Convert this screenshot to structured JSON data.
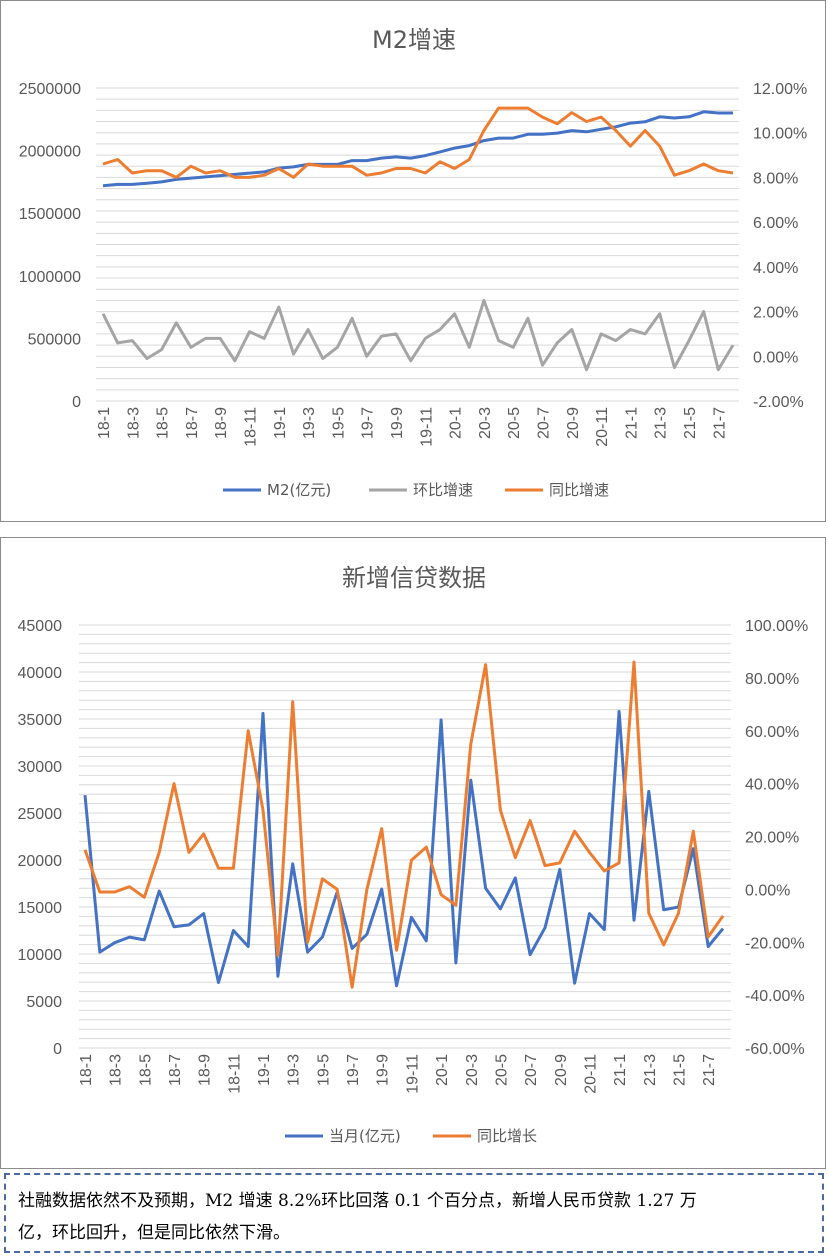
{
  "charts": [
    {
      "title": "M2增速",
      "categories": [
        "18-1",
        "18-3",
        "18-5",
        "18-7",
        "18-9",
        "18-11",
        "19-1",
        "19-3",
        "19-5",
        "19-7",
        "19-9",
        "19-11",
        "20-1",
        "20-3",
        "20-5",
        "20-7",
        "20-9",
        "20-11",
        "21-1",
        "21-3",
        "21-5",
        "21-7"
      ],
      "left_ticks": [
        "0",
        "500000",
        "1000000",
        "1500000",
        "2000000",
        "2500000"
      ],
      "right_ticks": [
        "-2.00%",
        "0.00%",
        "2.00%",
        "4.00%",
        "6.00%",
        "8.00%",
        "10.00%",
        "12.00%"
      ],
      "legend": [
        "M2(亿元)",
        "环比增速",
        "同比增速"
      ]
    },
    {
      "title": "新增信贷数据",
      "categories": [
        "18-1",
        "18-3",
        "18-5",
        "18-7",
        "18-9",
        "18-11",
        "19-1",
        "19-3",
        "19-5",
        "19-7",
        "19-9",
        "19-11",
        "20-1",
        "20-3",
        "20-5",
        "20-7",
        "20-9",
        "20-11",
        "21-1",
        "21-3",
        "21-5",
        "21-7"
      ],
      "left_ticks": [
        "0",
        "5000",
        "10000",
        "15000",
        "20000",
        "25000",
        "30000",
        "35000",
        "40000",
        "45000"
      ],
      "right_ticks": [
        "-60.00%",
        "-40.00%",
        "-20.00%",
        "0.00%",
        "20.00%",
        "40.00%",
        "60.00%",
        "80.00%",
        "100.00%"
      ],
      "legend": [
        "当月(亿元)",
        "同比增长"
      ]
    }
  ],
  "chart_data": [
    {
      "type": "line",
      "title": "M2增速",
      "x": [
        "18-1",
        "18-2",
        "18-3",
        "18-4",
        "18-5",
        "18-6",
        "18-7",
        "18-8",
        "18-9",
        "18-10",
        "18-11",
        "18-12",
        "19-1",
        "19-2",
        "19-3",
        "19-4",
        "19-5",
        "19-6",
        "19-7",
        "19-8",
        "19-9",
        "19-10",
        "19-11",
        "19-12",
        "20-1",
        "20-2",
        "20-3",
        "20-4",
        "20-5",
        "20-6",
        "20-7",
        "20-8",
        "20-9",
        "20-10",
        "20-11",
        "20-12",
        "21-1",
        "21-2",
        "21-3",
        "21-4",
        "21-5",
        "21-6",
        "21-7",
        "21-8"
      ],
      "left_ylim": [
        0,
        2500000
      ],
      "right_ylim": [
        -0.02,
        0.12
      ],
      "grid": true,
      "legend_position": "bottom",
      "series": [
        {
          "name": "M2(亿元)",
          "axis": "left",
          "color": "#4472c4",
          "values": [
            1720000,
            1730000,
            1730000,
            1740000,
            1750000,
            1770000,
            1780000,
            1790000,
            1800000,
            1810000,
            1820000,
            1830000,
            1860000,
            1870000,
            1890000,
            1890000,
            1890000,
            1920000,
            1920000,
            1940000,
            1950000,
            1940000,
            1960000,
            1990000,
            2020000,
            2040000,
            2080000,
            2100000,
            2100000,
            2130000,
            2130000,
            2140000,
            2160000,
            2150000,
            2170000,
            2190000,
            2220000,
            2230000,
            2270000,
            2260000,
            2270000,
            2310000,
            2300000,
            2300000
          ]
        },
        {
          "name": "环比增速",
          "axis": "right",
          "color": "#a5a5a5",
          "values": [
            0.019,
            0.006,
            0.007,
            -0.001,
            0.003,
            0.015,
            0.004,
            0.008,
            0.008,
            -0.002,
            0.011,
            0.008,
            0.022,
            0.001,
            0.012,
            -0.001,
            0.004,
            0.017,
            0.0,
            0.009,
            0.01,
            -0.002,
            0.008,
            0.012,
            0.019,
            0.004,
            0.025,
            0.007,
            0.004,
            0.017,
            -0.004,
            0.006,
            0.012,
            -0.006,
            0.01,
            0.007,
            0.012,
            0.01,
            0.019,
            -0.005,
            0.007,
            0.02,
            -0.006,
            0.005
          ]
        },
        {
          "name": "同比增速",
          "axis": "right",
          "color": "#ed7d31",
          "values": [
            0.086,
            0.088,
            0.082,
            0.083,
            0.083,
            0.08,
            0.085,
            0.082,
            0.083,
            0.08,
            0.08,
            0.081,
            0.084,
            0.08,
            0.086,
            0.085,
            0.085,
            0.085,
            0.081,
            0.082,
            0.084,
            0.084,
            0.082,
            0.087,
            0.084,
            0.088,
            0.101,
            0.111,
            0.111,
            0.111,
            0.107,
            0.104,
            0.109,
            0.105,
            0.107,
            0.101,
            0.094,
            0.101,
            0.094,
            0.081,
            0.083,
            0.086,
            0.083,
            0.082
          ]
        }
      ]
    },
    {
      "type": "line",
      "title": "新增信贷数据",
      "x": [
        "18-1",
        "18-2",
        "18-3",
        "18-4",
        "18-5",
        "18-6",
        "18-7",
        "18-8",
        "18-9",
        "18-10",
        "18-11",
        "18-12",
        "19-1",
        "19-2",
        "19-3",
        "19-4",
        "19-5",
        "19-6",
        "19-7",
        "19-8",
        "19-9",
        "19-10",
        "19-11",
        "19-12",
        "20-1",
        "20-2",
        "20-3",
        "20-4",
        "20-5",
        "20-6",
        "20-7",
        "20-8",
        "20-9",
        "20-10",
        "20-11",
        "20-12",
        "21-1",
        "21-2",
        "21-3",
        "21-4",
        "21-5",
        "21-6",
        "21-7",
        "21-8"
      ],
      "left_ylim": [
        0,
        45000
      ],
      "right_ylim": [
        -0.6,
        1.0
      ],
      "grid": true,
      "legend_position": "bottom",
      "series": [
        {
          "name": "当月(亿元)",
          "axis": "left",
          "color": "#4472c4",
          "values": [
            26900,
            10200,
            11200,
            11800,
            11500,
            16700,
            12900,
            13100,
            14300,
            6970,
            12500,
            10800,
            35600,
            7641,
            19600,
            10200,
            11800,
            16600,
            10600,
            12100,
            16900,
            6613,
            13900,
            11400,
            34900,
            9057,
            28500,
            17000,
            14800,
            18100,
            9927,
            12800,
            19000,
            6898,
            14300,
            12600,
            35800,
            13600,
            27300,
            14700,
            15000,
            21200,
            10800,
            12700
          ]
        },
        {
          "name": "同比增长",
          "axis": "right",
          "color": "#ed7d31",
          "values": [
            0.15,
            -0.01,
            -0.01,
            0.01,
            -0.03,
            0.14,
            0.4,
            0.14,
            0.21,
            0.08,
            0.08,
            0.6,
            0.3,
            -0.25,
            0.71,
            -0.2,
            0.04,
            0.0,
            -0.37,
            0.0,
            0.23,
            -0.23,
            0.11,
            0.16,
            -0.02,
            -0.06,
            0.55,
            0.85,
            0.3,
            0.12,
            0.26,
            0.09,
            0.1,
            0.22,
            0.14,
            0.07,
            0.1,
            0.86,
            -0.09,
            -0.21,
            -0.09,
            0.22,
            -0.18,
            -0.1
          ]
        }
      ]
    }
  ],
  "note": {
    "line1": "社融数据依然不及预期，M2 增速 8.2%环比回落 0.1 个百分点，新增人民币贷款 1.27 万",
    "line2": "亿，环比回升，但是同比依然下滑。"
  }
}
